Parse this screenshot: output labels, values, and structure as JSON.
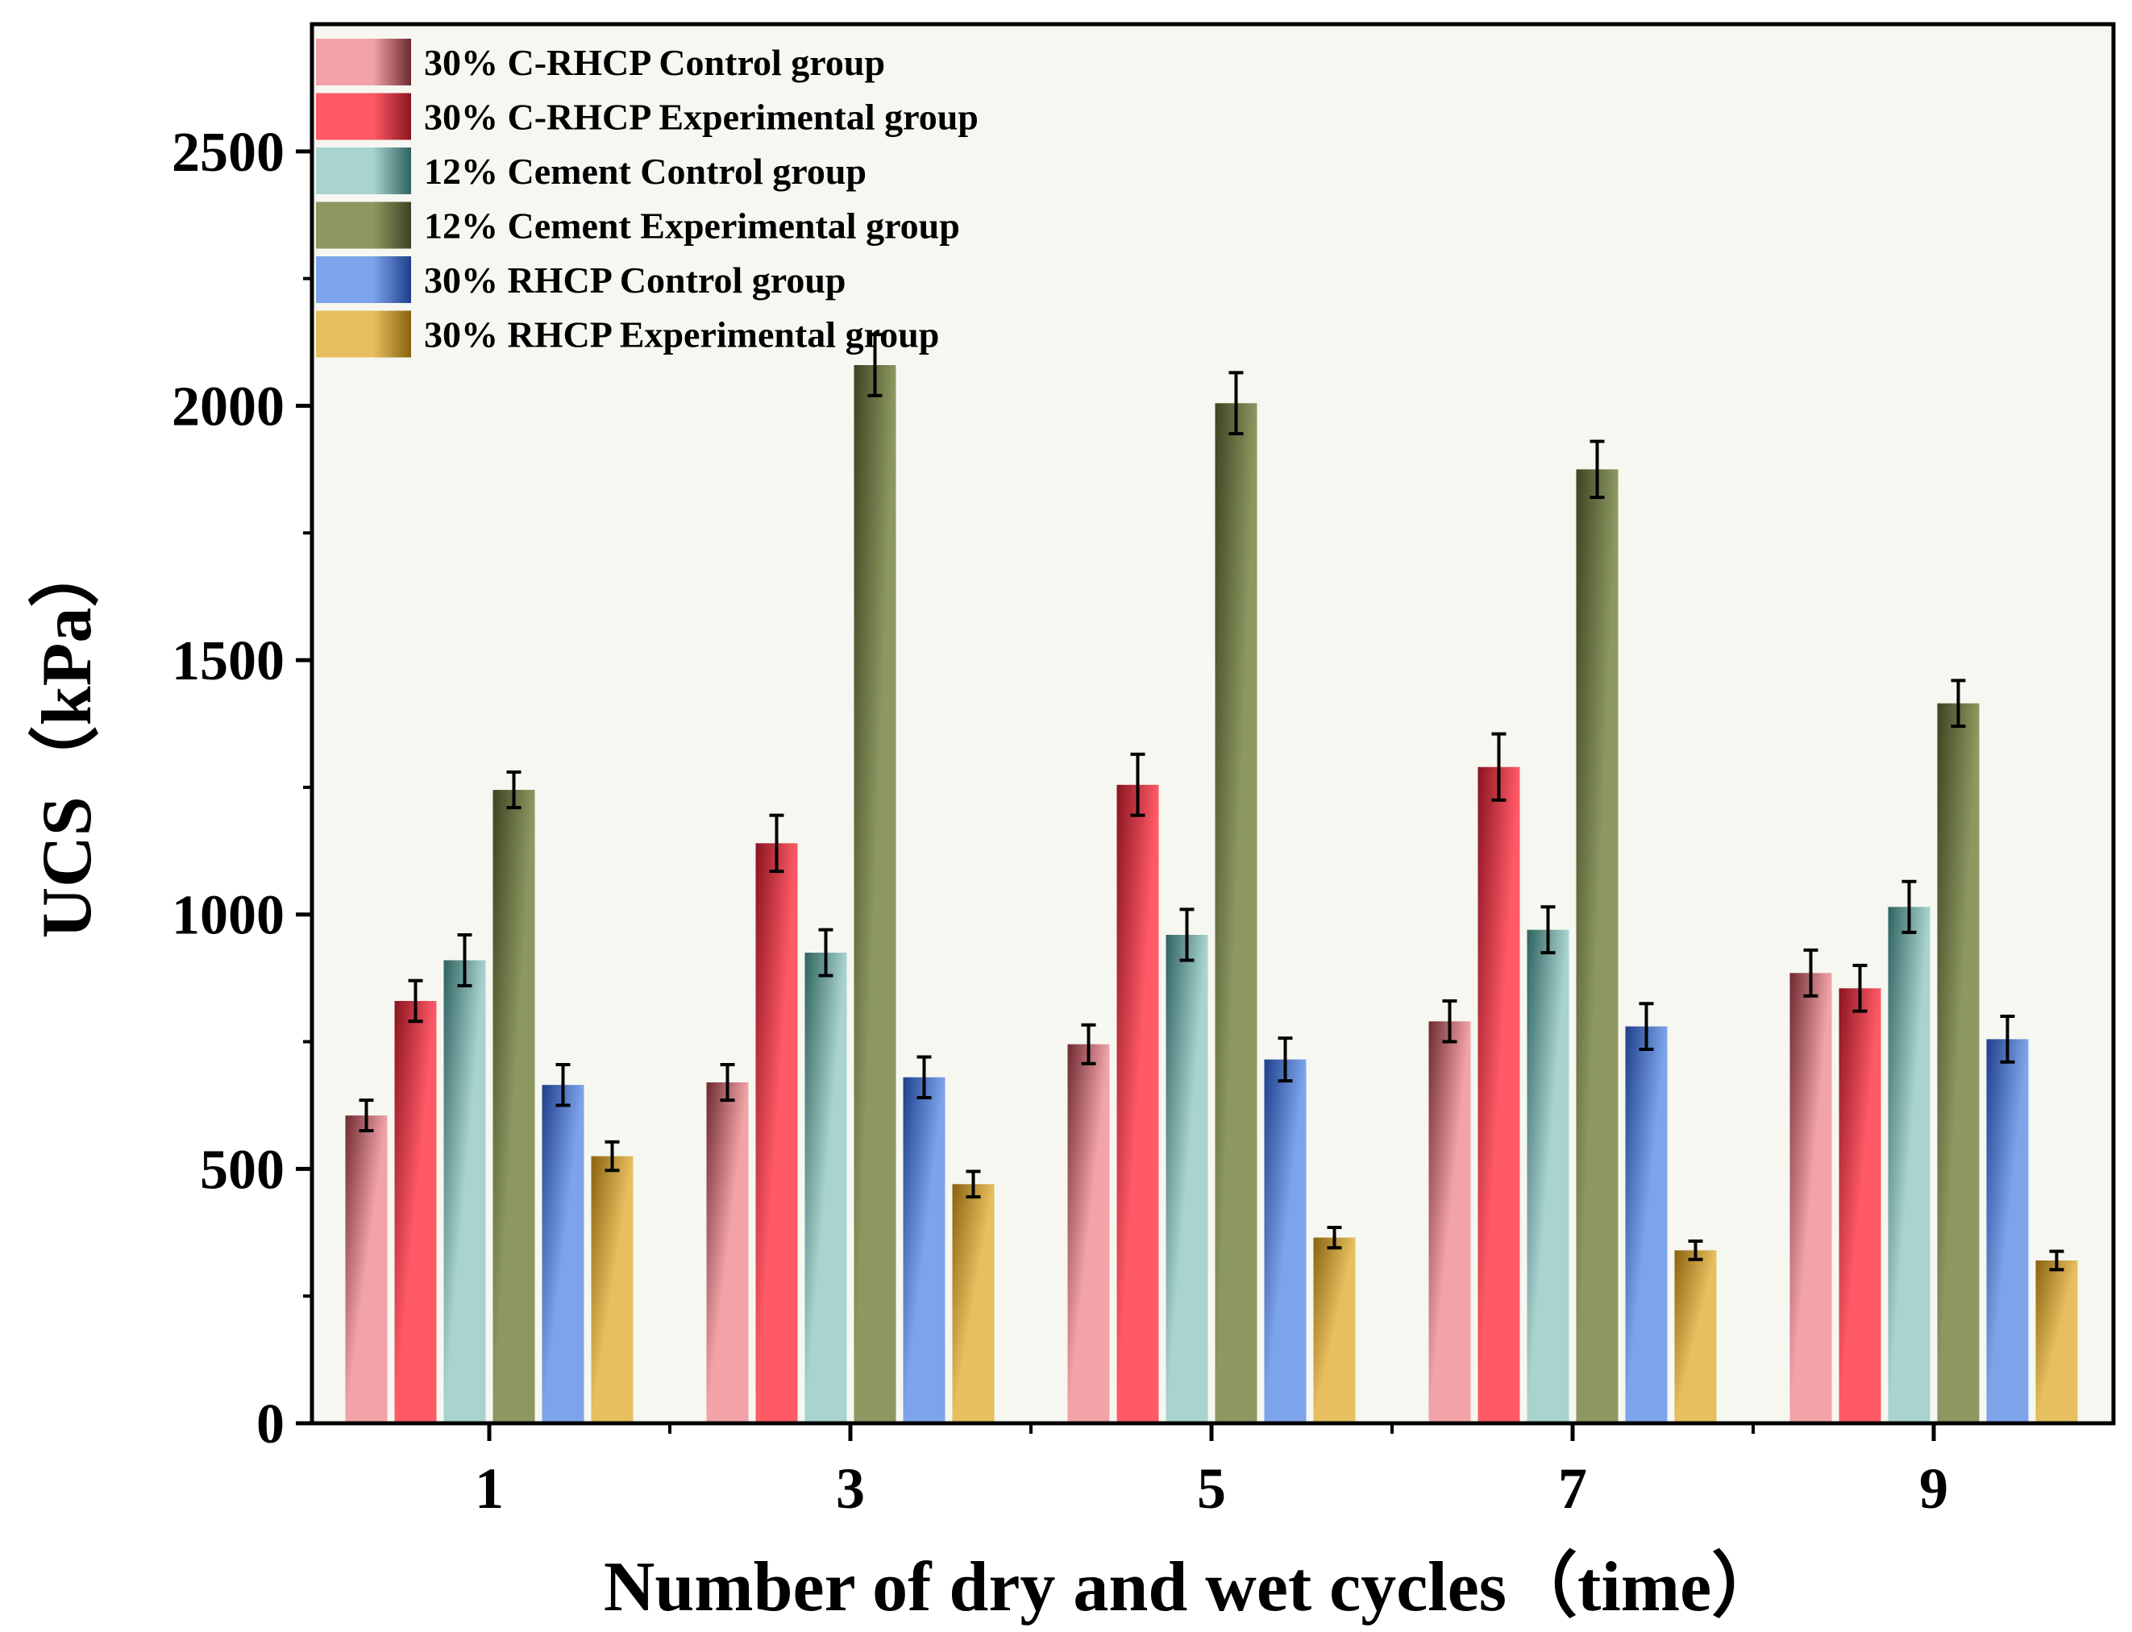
{
  "chart_data": {
    "type": "bar",
    "title": "",
    "xlabel": "Number of dry and wet cycles（time）",
    "ylabel": "UCS（kPa）",
    "ylim": [
      0,
      2750
    ],
    "yticks": [
      0,
      500,
      1000,
      1500,
      2000,
      2500
    ],
    "ytick_labels": [
      "0",
      "500",
      "1000",
      "1500",
      "2000",
      "2500"
    ],
    "categories": [
      "1",
      "3",
      "5",
      "7",
      "9"
    ],
    "legend_position": "top-left",
    "grid": false,
    "series": [
      {
        "name": "30% C-RHCP Control group",
        "values": [
          605,
          670,
          745,
          790,
          885
        ],
        "errors": [
          30,
          35,
          38,
          40,
          45
        ],
        "color": "#f2a3a8",
        "dark": "#6e2a30"
      },
      {
        "name": "30% C-RHCP Experimental group",
        "values": [
          830,
          1140,
          1255,
          1290,
          855
        ],
        "errors": [
          40,
          55,
          60,
          65,
          45
        ],
        "color": "#ff5a66",
        "dark": "#8a1420"
      },
      {
        "name": "12% Cement Control group",
        "values": [
          910,
          925,
          960,
          970,
          1015
        ],
        "errors": [
          50,
          45,
          50,
          45,
          50
        ],
        "color": "#a9d3cf",
        "dark": "#2f6360"
      },
      {
        "name": "12% Cement Experimental group",
        "values": [
          1245,
          2080,
          2005,
          1875,
          1415
        ],
        "errors": [
          35,
          60,
          60,
          55,
          45
        ],
        "color": "#8c9860",
        "dark": "#3d4422"
      },
      {
        "name": "30% RHCP Control group",
        "values": [
          665,
          680,
          715,
          780,
          755
        ],
        "errors": [
          40,
          40,
          42,
          45,
          45
        ],
        "color": "#7da4ea",
        "dark": "#1f3f8c"
      },
      {
        "name": "30% RHCP Experimental group",
        "values": [
          525,
          470,
          365,
          340,
          320
        ],
        "errors": [
          28,
          25,
          20,
          18,
          18
        ],
        "color": "#e7bf5e",
        "dark": "#8a6210"
      }
    ]
  }
}
